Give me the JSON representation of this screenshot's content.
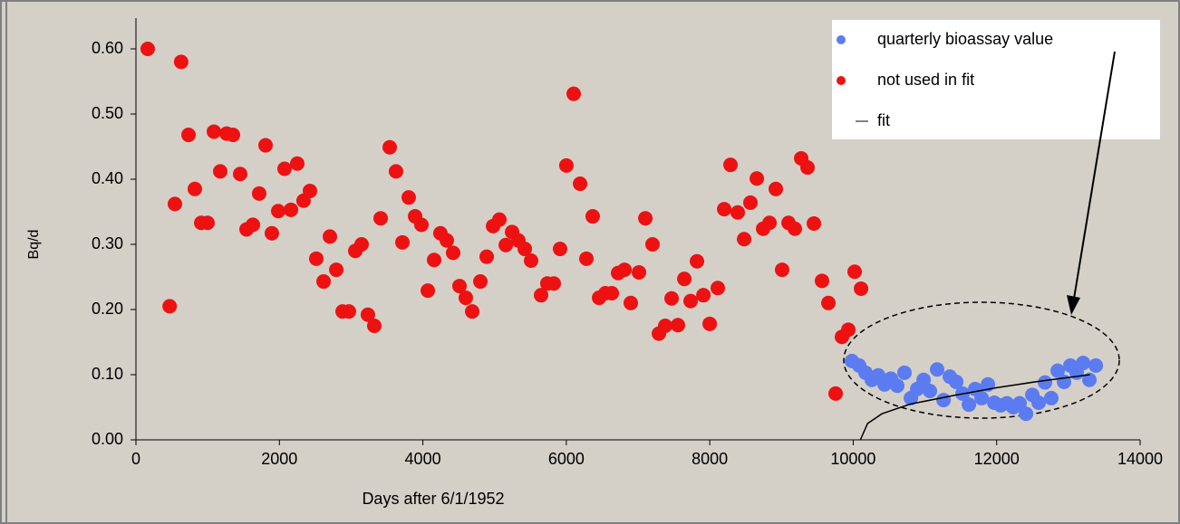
{
  "chart_data": {
    "type": "scatter",
    "xlabel": "Days after 6/1/1952",
    "ylabel": "Bq/d",
    "xlim": [
      0,
      14000
    ],
    "xticks": [
      0,
      2000,
      4000,
      6000,
      8000,
      10000,
      12000,
      14000
    ],
    "ylim": [
      0,
      0.6
    ],
    "yticks": [
      {
        "value": 0,
        "label": "0.00"
      },
      {
        "value": 0.1,
        "label": "0.10"
      },
      {
        "value": 0.2,
        "label": "0.20"
      },
      {
        "value": 0.3,
        "label": "0.30"
      },
      {
        "value": 0.4,
        "label": "0.40"
      },
      {
        "value": 0.5,
        "label": "0.50"
      },
      {
        "value": 0.6,
        "label": "0.60"
      }
    ],
    "series": [
      {
        "name": "quarterly bioassay value",
        "color": "#5b7cf0",
        "x": [
          9982,
          10083,
          10172,
          10260,
          10349,
          10437,
          10526,
          10614,
          10715,
          10804,
          10892,
          10981,
          11069,
          11170,
          11259,
          11347,
          11436,
          11524,
          11613,
          11701,
          11790,
          11878,
          11966,
          12055,
          12143,
          12232,
          12320,
          12409,
          12497,
          12585,
          12674,
          12762,
          12851,
          12939,
          13028,
          13116,
          13205,
          13293,
          13382
        ],
        "values": [
          0.121,
          0.114,
          0.103,
          0.092,
          0.099,
          0.085,
          0.094,
          0.083,
          0.103,
          0.064,
          0.078,
          0.092,
          0.075,
          0.108,
          0.061,
          0.097,
          0.089,
          0.071,
          0.054,
          0.078,
          0.064,
          0.085,
          0.057,
          0.053,
          0.056,
          0.05,
          0.056,
          0.04,
          0.069,
          0.057,
          0.088,
          0.064,
          0.106,
          0.089,
          0.114,
          0.103,
          0.118,
          0.092,
          0.114
        ]
      },
      {
        "name": "not used in fit",
        "color": "#ee1111",
        "x": [
          164,
          470,
          543,
          630,
          733,
          821,
          910,
          998,
          1087,
          1175,
          1264,
          1352,
          1453,
          1542,
          1630,
          1718,
          1807,
          1895,
          1984,
          2072,
          2161,
          2249,
          2337,
          2426,
          2514,
          2616,
          2704,
          2793,
          2881,
          2969,
          3058,
          3146,
          3234,
          3323,
          3412,
          3538,
          3626,
          3715,
          3803,
          3892,
          3980,
          4069,
          4157,
          4245,
          4334,
          4422,
          4511,
          4599,
          4688,
          4802,
          4890,
          4979,
          5067,
          5156,
          5244,
          5332,
          5421,
          5509,
          5648,
          5736,
          5825,
          5913,
          6001,
          6103,
          6192,
          6280,
          6368,
          6457,
          6545,
          6634,
          6722,
          6811,
          6899,
          7013,
          7102,
          7202,
          7291,
          7379,
          7468,
          7556,
          7645,
          7733,
          7822,
          7911,
          7999,
          8112,
          8201,
          8289,
          8390,
          8479,
          8567,
          8656,
          8744,
          8833,
          8921,
          9009,
          9098,
          9186,
          9275,
          9363,
          9452,
          9565,
          9654,
          9755,
          9843,
          9932,
          10020,
          10109
        ],
        "values": [
          0.6,
          0.205,
          0.362,
          0.58,
          0.468,
          0.385,
          0.333,
          0.333,
          0.473,
          0.412,
          0.47,
          0.468,
          0.408,
          0.323,
          0.33,
          0.378,
          0.452,
          0.317,
          0.351,
          0.416,
          0.353,
          0.424,
          0.367,
          0.382,
          0.278,
          0.243,
          0.312,
          0.261,
          0.197,
          0.197,
          0.29,
          0.3,
          0.192,
          0.175,
          0.34,
          0.449,
          0.412,
          0.303,
          0.372,
          0.343,
          0.33,
          0.229,
          0.276,
          0.317,
          0.306,
          0.287,
          0.236,
          0.218,
          0.197,
          0.243,
          0.281,
          0.328,
          0.338,
          0.299,
          0.319,
          0.306,
          0.293,
          0.275,
          0.222,
          0.24,
          0.24,
          0.293,
          0.421,
          0.531,
          0.393,
          0.278,
          0.343,
          0.218,
          0.225,
          0.225,
          0.256,
          0.261,
          0.21,
          0.257,
          0.34,
          0.3,
          0.163,
          0.175,
          0.217,
          0.176,
          0.247,
          0.213,
          0.274,
          0.222,
          0.178,
          0.233,
          0.354,
          0.422,
          0.349,
          0.308,
          0.364,
          0.401,
          0.324,
          0.333,
          0.385,
          0.261,
          0.333,
          0.324,
          0.432,
          0.418,
          0.332,
          0.244,
          0.21,
          0.071,
          0.158,
          0.169,
          0.258,
          0.232
        ]
      },
      {
        "name": "fit",
        "color": "#000000",
        "line": true,
        "x": [
          10100,
          10200,
          10400,
          10800,
          11400,
          12000,
          12600,
          13300
        ],
        "values": [
          0,
          0.025,
          0.04,
          0.055,
          0.068,
          0.08,
          0.09,
          0.1
        ]
      }
    ]
  }
}
